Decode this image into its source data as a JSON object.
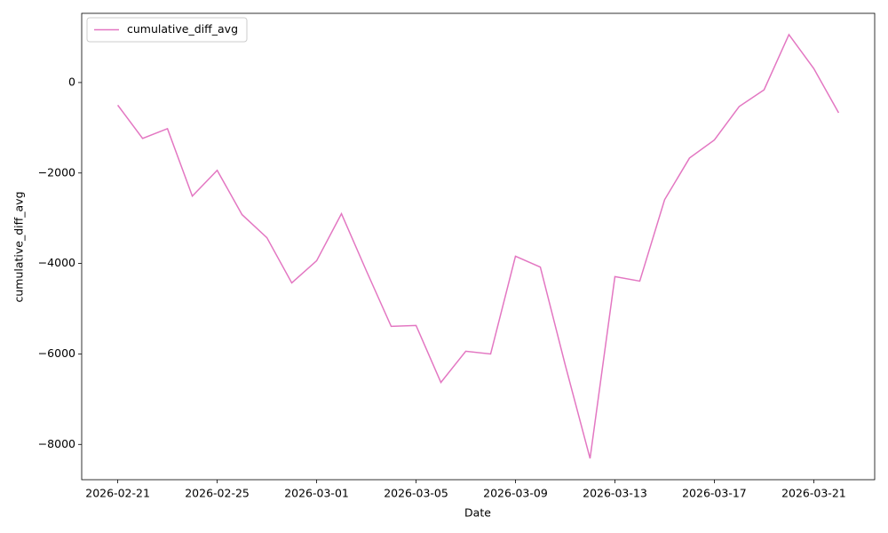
{
  "chart_data": {
    "type": "line",
    "xlabel": "Date",
    "ylabel": "cumulative_diff_avg",
    "x": [
      "2026-02-21",
      "2026-02-22",
      "2026-02-23",
      "2026-02-24",
      "2026-02-25",
      "2026-02-26",
      "2026-02-27",
      "2026-02-28",
      "2026-03-01",
      "2026-03-02",
      "2026-03-03",
      "2026-03-04",
      "2026-03-05",
      "2026-03-06",
      "2026-03-07",
      "2026-03-08",
      "2026-03-09",
      "2026-03-10",
      "2026-03-11",
      "2026-03-12",
      "2026-03-13",
      "2026-03-14",
      "2026-03-15",
      "2026-03-16",
      "2026-03-17",
      "2026-03-18",
      "2026-03-19",
      "2026-03-20",
      "2026-03-21",
      "2026-03-22"
    ],
    "series": [
      {
        "name": "cumulative_diff_avg",
        "color": "#e377c2",
        "values": [
          -500,
          -1235,
          -1020,
          -2510,
          -1940,
          -2920,
          -3430,
          -4430,
          -3940,
          -2900,
          -4160,
          -5390,
          -5370,
          -6630,
          -5940,
          -6000,
          -3840,
          -4080,
          -6240,
          -8310,
          -4290,
          -4390,
          -2590,
          -1670,
          -1270,
          -530,
          -160,
          1060,
          310,
          -670
        ]
      }
    ],
    "xticks": [
      "2026-02-21",
      "2026-02-25",
      "2026-03-01",
      "2026-03-05",
      "2026-03-09",
      "2026-03-13",
      "2026-03-17",
      "2026-03-21"
    ],
    "ylim": [
      -8780,
      1530
    ],
    "yticks": [
      {
        "value": -8000,
        "label": "−8000"
      },
      {
        "value": -6000,
        "label": "−6000"
      },
      {
        "value": -4000,
        "label": "−4000"
      },
      {
        "value": -2000,
        "label": "−2000"
      },
      0
    ],
    "grid": false,
    "legend": "upper left"
  }
}
